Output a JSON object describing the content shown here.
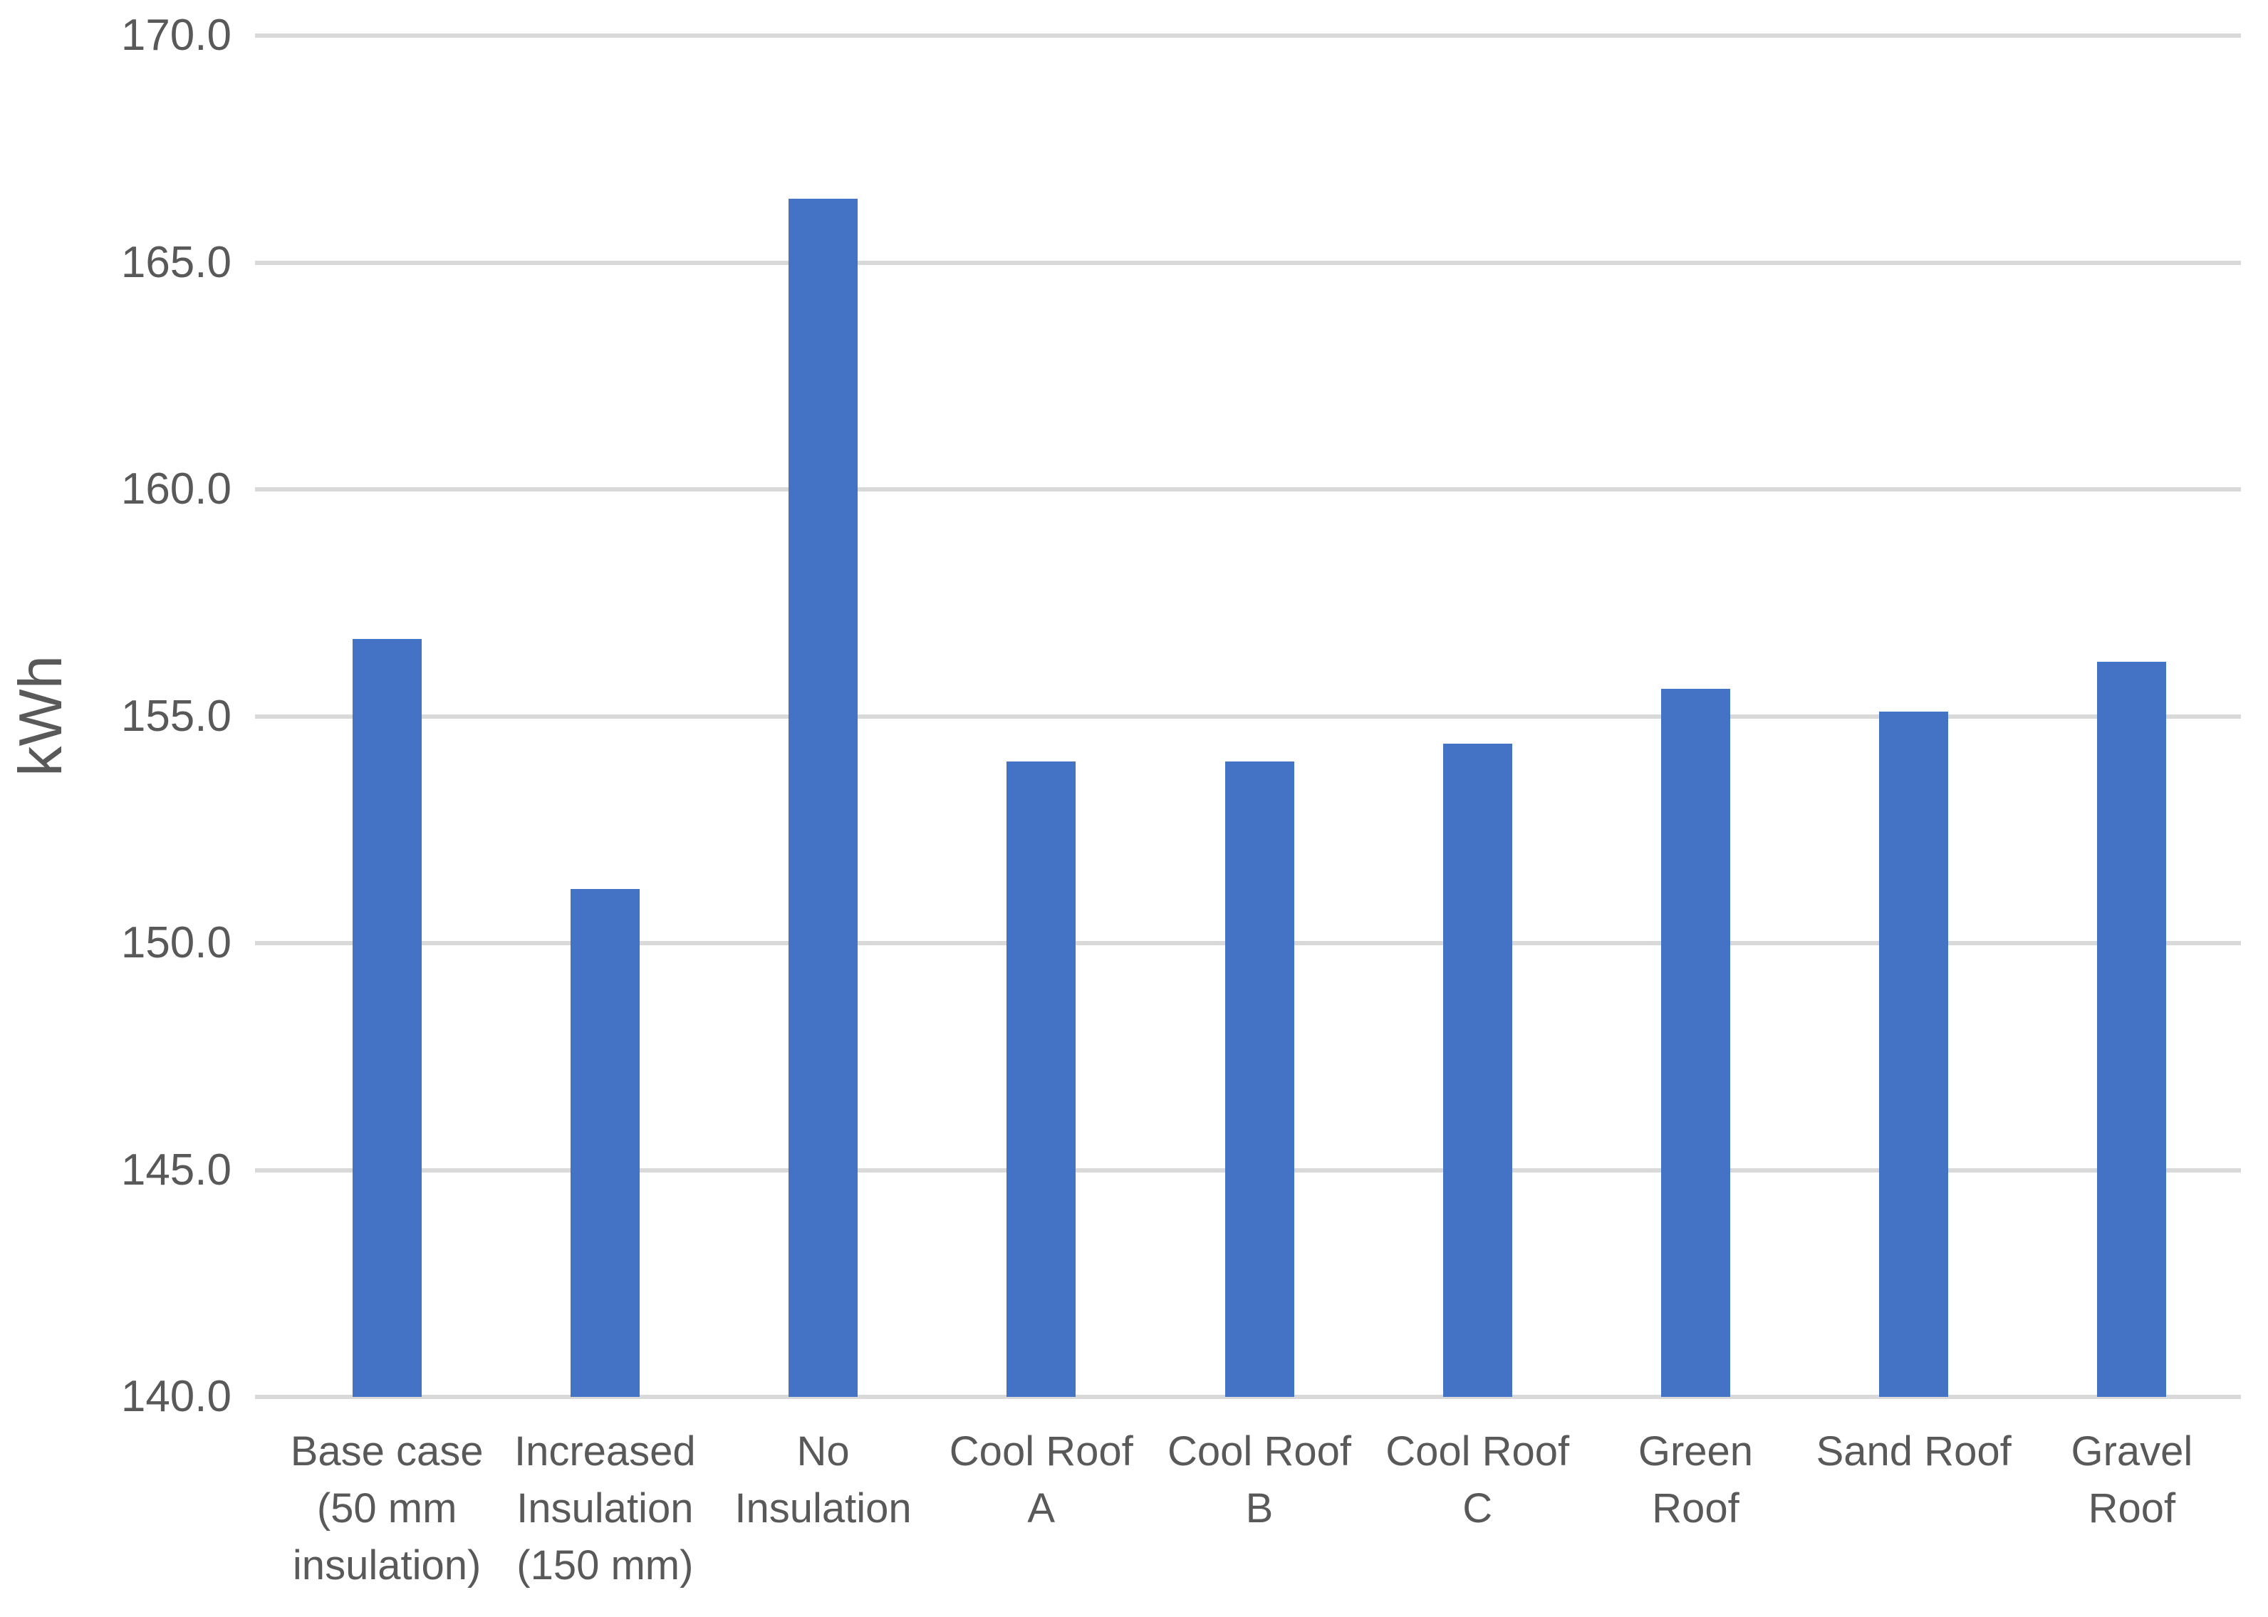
{
  "chart_data": {
    "type": "bar",
    "title": "",
    "xlabel": "",
    "ylabel": "kWh",
    "categories": [
      "Base case (50 mm insulation)",
      "Increased Insulation (150 mm)",
      "No Insulation",
      "Cool Roof A",
      "Cool Roof B",
      "Cool Roof C",
      "Green Roof",
      "Sand Roof",
      "Gravel Roof"
    ],
    "categories_wrapped": [
      "Base case\n(50 mm\ninsulation)",
      "Increased\nInsulation\n(150 mm)",
      "No\nInsulation",
      "Cool Roof\nA",
      "Cool Roof\nB",
      "Cool Roof\nC",
      "Green\nRoof",
      "Sand Roof",
      "Gravel\nRoof"
    ],
    "values": [
      156.7,
      151.2,
      166.4,
      154.0,
      154.0,
      154.4,
      155.6,
      155.1,
      156.2
    ],
    "ylim": [
      140,
      170
    ],
    "y_tick_step": 5,
    "y_tick_labels": [
      "170.0",
      "165.0",
      "160.0",
      "155.0",
      "150.0",
      "145.0",
      "140.0"
    ],
    "grid": true,
    "legend": false,
    "bar_color": "#4472C4",
    "gridline_color": "#D9D9D9",
    "axis_text_color": "#595959"
  }
}
